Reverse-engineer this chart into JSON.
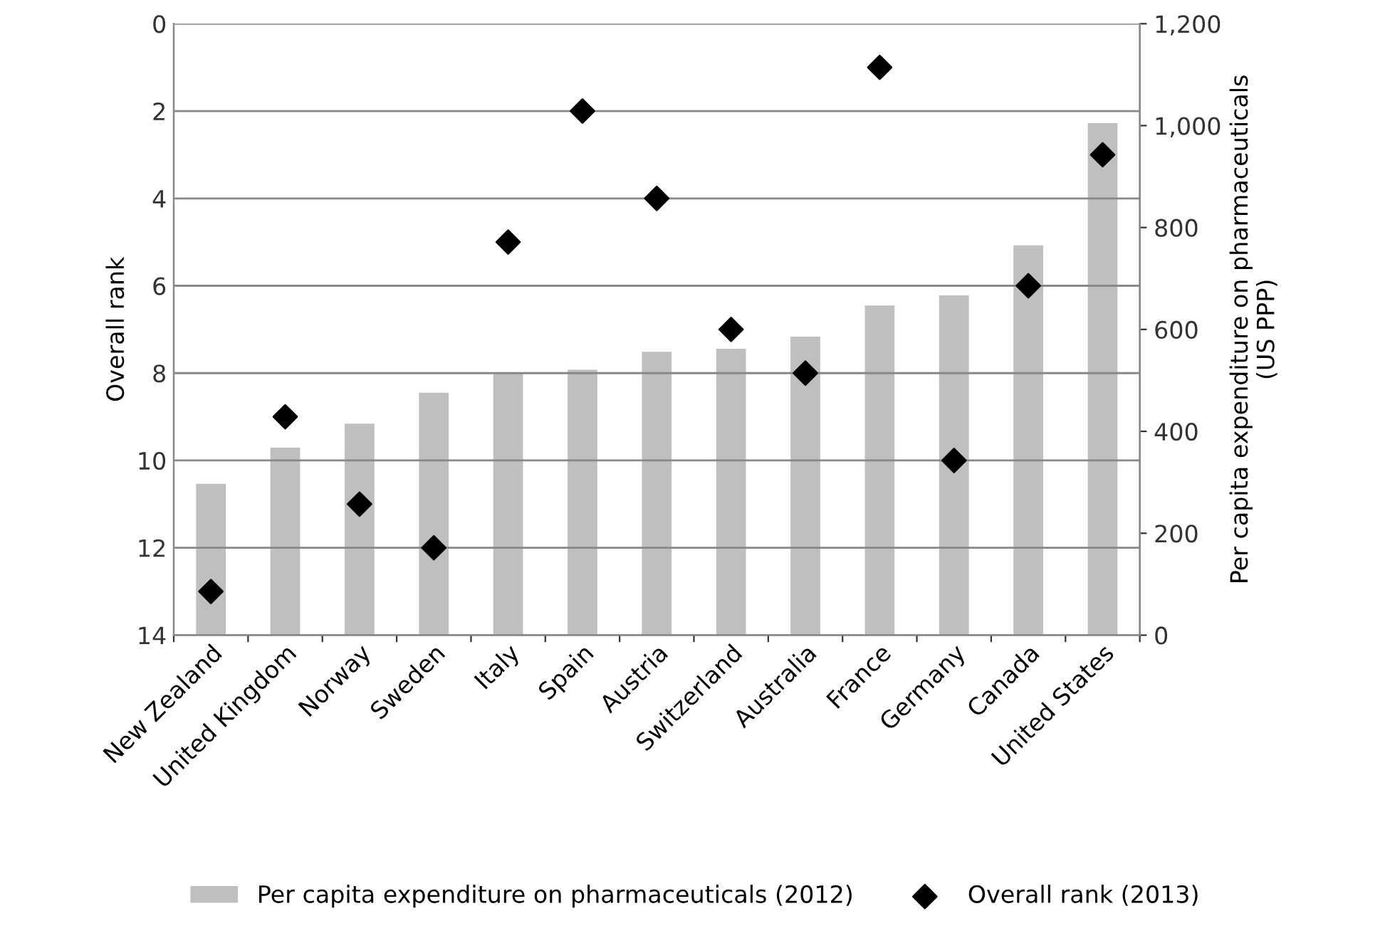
{
  "chart_data": {
    "type": "bar",
    "categories": [
      "New Zealand",
      "United Kingdom",
      "Norway",
      "Sweden",
      "Italy",
      "Spain",
      "Austria",
      "Switzerland",
      "Australia",
      "France",
      "Germany",
      "Canada",
      "United States"
    ],
    "ylabel": "Overall rank",
    "y2label": "Per capita expenditure on pharmaceuticals\n(US PPP)",
    "ylim": [
      14,
      0
    ],
    "yticks": [
      0,
      2,
      4,
      6,
      8,
      10,
      12,
      14
    ],
    "y2lim": [
      0,
      1200
    ],
    "y2ticks": [
      {
        "value": 0,
        "label": "0"
      },
      {
        "value": 200,
        "label": "200"
      },
      {
        "value": 400,
        "label": "400"
      },
      {
        "value": 600,
        "label": "600"
      },
      {
        "value": 800,
        "label": "800"
      },
      {
        "value": 1000,
        "label": "1,000"
      },
      {
        "value": 1200,
        "label": "1,200"
      }
    ],
    "grid": "y",
    "legend": "bottom",
    "series": [
      {
        "name": "Per capita expenditure on pharmaceuticals (2012)",
        "axis": "y2",
        "color": "#bfbfbf",
        "values": [
          297,
          368,
          415,
          476,
          515,
          521,
          556,
          562,
          586,
          647,
          667,
          765,
          1005
        ]
      },
      {
        "name": "Overall rank (2013)",
        "type": "scatter",
        "axis": "y",
        "color": "#000000",
        "marker": "diamond",
        "values": [
          13,
          9,
          11,
          12,
          5,
          2,
          4,
          7,
          8,
          1,
          10,
          6,
          3
        ]
      }
    ]
  }
}
